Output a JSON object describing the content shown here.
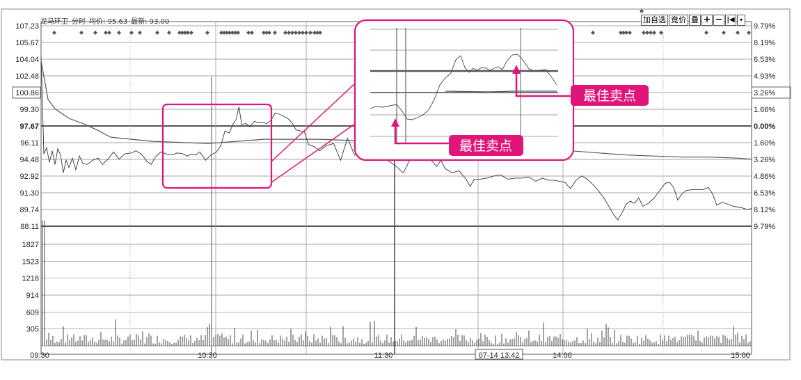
{
  "header": {
    "stock_name": "龙马环卫",
    "mode": "分时",
    "avg_label": "均价: 95.63",
    "latest_label": "最新: 93.00"
  },
  "toolbar": {
    "add_watchlist": "加自选",
    "auction": "竟价",
    "overlay": "叠",
    "plus": "+",
    "minus": "−",
    "back": "|◀",
    "menu": "▾"
  },
  "chart_data": {
    "type": "line",
    "price_axis_left": [
      "107.23",
      "105.67",
      "104.04",
      "102.48",
      "100.86",
      "99.30",
      "97.67",
      "96.11",
      "94.48",
      "92.92",
      "91.30",
      "89.74",
      "88.11"
    ],
    "price_axis_right": [
      "9.79%",
      "8.19%",
      "6.53%",
      "4.93%",
      "3.26%",
      "1.66%",
      "0.00%",
      "1.60%",
      "3.26%",
      "4.86%",
      "6.53%",
      "8.12%",
      "9.79%"
    ],
    "volume_axis": [
      "1827",
      "1523",
      "1218",
      "914",
      "609",
      "305"
    ],
    "time_axis": [
      "09:30",
      "10:30",
      "11:30",
      "07-14 13:42",
      "14:00",
      "15:00"
    ],
    "prev_close": 97.67,
    "ylim": [
      88.11,
      107.23
    ],
    "series": [
      {
        "name": "price",
        "points": [
          [
            0,
            104.3
          ],
          [
            2,
            99.8
          ],
          [
            4,
            95.0
          ],
          [
            8,
            95.6
          ],
          [
            12,
            94.2
          ],
          [
            16,
            95.3
          ],
          [
            20,
            94.0
          ],
          [
            24,
            95.5
          ],
          [
            28,
            94.9
          ],
          [
            32,
            93.2
          ],
          [
            36,
            94.4
          ],
          [
            40,
            93.7
          ],
          [
            45,
            94.6
          ],
          [
            50,
            93.5
          ],
          [
            55,
            94.8
          ],
          [
            60,
            94.1
          ],
          [
            66,
            94.0
          ],
          [
            74,
            94.4
          ],
          [
            82,
            94.6
          ],
          [
            88,
            94.0
          ],
          [
            96,
            94.5
          ],
          [
            104,
            95.2
          ],
          [
            112,
            94.5
          ],
          [
            120,
            95.0
          ],
          [
            130,
            95.1
          ],
          [
            136,
            95.3
          ],
          [
            144,
            95.0
          ],
          [
            152,
            94.3
          ],
          [
            158,
            94.0
          ],
          [
            164,
            94.7
          ],
          [
            172,
            95.2
          ],
          [
            180,
            95.0
          ],
          [
            188,
            94.9
          ],
          [
            196,
            95.1
          ],
          [
            204,
            95.0
          ],
          [
            210,
            94.8
          ],
          [
            216,
            95.0
          ],
          [
            222,
            94.9
          ],
          [
            228,
            95.2
          ],
          [
            236,
            94.4
          ],
          [
            244,
            94.9
          ],
          [
            252,
            95.2
          ],
          [
            258,
            95.8
          ],
          [
            264,
            97.2
          ],
          [
            270,
            97.0
          ],
          [
            276,
            97.9
          ],
          [
            280,
            98.3
          ],
          [
            284,
            99.5
          ],
          [
            288,
            97.8
          ],
          [
            294,
            97.9
          ],
          [
            300,
            97.6
          ],
          [
            306,
            98.1
          ],
          [
            312,
            98.0
          ],
          [
            318,
            98.0
          ],
          [
            324,
            97.9
          ],
          [
            330,
            98.2
          ],
          [
            336,
            98.9
          ],
          [
            342,
            98.8
          ],
          [
            348,
            98.6
          ],
          [
            354,
            98.4
          ],
          [
            360,
            98.0
          ],
          [
            366,
            97.3
          ],
          [
            372,
            97.2
          ],
          [
            378,
            97.1
          ],
          [
            384,
            95.9
          ],
          [
            392,
            95.7
          ],
          [
            400,
            95.3
          ],
          [
            410,
            95.8
          ],
          [
            420,
            96.0
          ],
          [
            430,
            94.4
          ],
          [
            440,
            96.5
          ],
          [
            450,
            94.9
          ],
          [
            462,
            95.6
          ],
          [
            476,
            95.1
          ],
          [
            490,
            94.6
          ],
          [
            500,
            94.3
          ],
          [
            510,
            93.8
          ],
          [
            520,
            93.2
          ],
          [
            530,
            94.5
          ],
          [
            540,
            94.7
          ],
          [
            550,
            94.4
          ],
          [
            560,
            94.4
          ],
          [
            568,
            93.8
          ],
          [
            574,
            94.4
          ],
          [
            580,
            93.6
          ],
          [
            590,
            93.2
          ],
          [
            600,
            93.4
          ],
          [
            610,
            92.6
          ],
          [
            616,
            91.9
          ],
          [
            622,
            92.6
          ],
          [
            630,
            92.6
          ],
          [
            640,
            92.7
          ],
          [
            650,
            92.9
          ],
          [
            660,
            93.0
          ],
          [
            670,
            92.6
          ],
          [
            680,
            92.7
          ],
          [
            690,
            92.7
          ],
          [
            700,
            92.8
          ],
          [
            710,
            92.4
          ],
          [
            720,
            92.7
          ],
          [
            728,
            92.5
          ],
          [
            736,
            92.5
          ],
          [
            744,
            92.4
          ],
          [
            752,
            92.3
          ],
          [
            760,
            91.7
          ],
          [
            768,
            92.5
          ],
          [
            776,
            92.9
          ],
          [
            784,
            92.6
          ],
          [
            792,
            92.1
          ],
          [
            800,
            91.5
          ],
          [
            808,
            90.8
          ],
          [
            816,
            89.9
          ],
          [
            822,
            89.2
          ],
          [
            828,
            88.7
          ],
          [
            834,
            89.4
          ],
          [
            840,
            90.2
          ],
          [
            846,
            90.5
          ],
          [
            852,
            90.3
          ],
          [
            858,
            90.8
          ],
          [
            864,
            90.0
          ],
          [
            872,
            90.3
          ],
          [
            880,
            90.8
          ],
          [
            888,
            91.5
          ],
          [
            896,
            92.2
          ],
          [
            902,
            92.3
          ],
          [
            908,
            91.8
          ],
          [
            914,
            90.6
          ],
          [
            920,
            91.2
          ],
          [
            926,
            91.5
          ],
          [
            934,
            91.6
          ],
          [
            942,
            91.6
          ],
          [
            950,
            91.6
          ],
          [
            958,
            91.8
          ],
          [
            964,
            91.2
          ],
          [
            970,
            90.1
          ],
          [
            978,
            90.4
          ],
          [
            986,
            90.2
          ],
          [
            994,
            90.0
          ],
          [
            1004,
            89.9
          ],
          [
            1014,
            89.7
          ],
          [
            1020,
            89.8
          ]
        ]
      },
      {
        "name": "average",
        "points": [
          [
            0,
            103.9
          ],
          [
            10,
            100.2
          ],
          [
            20,
            99.3
          ],
          [
            40,
            98.4
          ],
          [
            60,
            97.9
          ],
          [
            80,
            97.3
          ],
          [
            100,
            96.6
          ],
          [
            130,
            96.4
          ],
          [
            160,
            96.2
          ],
          [
            200,
            96.1
          ],
          [
            240,
            96.0
          ],
          [
            280,
            96.2
          ],
          [
            320,
            96.4
          ],
          [
            360,
            96.4
          ],
          [
            400,
            96.4
          ],
          [
            440,
            96.3
          ],
          [
            480,
            96.2
          ],
          [
            520,
            96.1
          ],
          [
            560,
            96.0
          ],
          [
            600,
            95.9
          ],
          [
            640,
            95.7
          ],
          [
            680,
            95.6
          ],
          [
            720,
            95.5
          ],
          [
            760,
            95.3
          ],
          [
            800,
            95.1
          ],
          [
            840,
            94.9
          ],
          [
            880,
            94.8
          ],
          [
            920,
            94.7
          ],
          [
            960,
            94.7
          ],
          [
            1000,
            94.6
          ],
          [
            1020,
            94.5
          ]
        ]
      }
    ],
    "volume": {
      "note": "intraday volume bars, max ≈ 1827"
    },
    "trade_markers_row": "◆ markers along top",
    "annotations": [
      "最佳卖点",
      "最佳卖点"
    ]
  }
}
